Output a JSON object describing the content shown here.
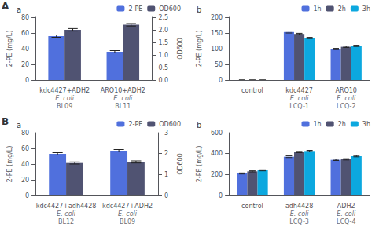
{
  "chart_data": [
    {
      "type": "bar",
      "title": "a",
      "annotations": [
        {
          "text": "A"
        }
      ],
      "categories": [
        "kdc4427+ADH2",
        "ARO10+ADH2"
      ],
      "strains": [
        "E. coli BL09",
        "E. coli BL11"
      ],
      "ylabel": "2-PE (mg/L)",
      "y2label": "OD600",
      "ylim": [
        0,
        80
      ],
      "yticks": [
        0,
        20,
        40,
        60,
        80
      ],
      "y2lim": [
        0,
        2.5
      ],
      "y2ticks": [
        {
          "value": 0,
          "label": "0.0"
        },
        0.5,
        {
          "value": 1.0,
          "label": "1.0"
        },
        1.5,
        {
          "value": 2.0,
          "label": "2.0"
        },
        2.5
      ],
      "series": [
        {
          "name": "2-PE",
          "values": [
            56,
            36
          ],
          "errors": [
            1.5,
            1.5
          ]
        },
        {
          "name": "OD600",
          "axis": "y2",
          "values": [
            2.0,
            2.2
          ],
          "errors": [
            0.05,
            0.05
          ]
        }
      ],
      "legend": "upper right",
      "grid": false
    },
    {
      "type": "bar",
      "title": "b",
      "categories": [
        "control",
        "kdc4427",
        "ARO10"
      ],
      "strains": [
        null,
        "E. coli LCQ-1",
        "E. coli LCQ-2"
      ],
      "ylabel": "2-PE (mg/L)",
      "ylim": [
        0,
        200
      ],
      "yticks": [
        0,
        50,
        100,
        150,
        200
      ],
      "series": [
        {
          "name": "1h",
          "values": [
            0,
            153,
            99
          ],
          "errors": [
            0,
            3,
            2
          ]
        },
        {
          "name": "2h",
          "values": [
            0,
            147,
            106
          ],
          "errors": [
            0,
            2,
            2
          ]
        },
        {
          "name": "3h",
          "values": [
            0,
            134,
            109
          ],
          "errors": [
            0,
            2,
            2
          ]
        }
      ],
      "legend": "upper right",
      "grid": false
    },
    {
      "type": "bar",
      "title": "a",
      "annotations": [
        {
          "text": "B"
        }
      ],
      "categories": [
        "kdc4427+adh4428",
        "kdc4427+ADH2"
      ],
      "strains": [
        "E. coli BL12",
        "E. coli BL09"
      ],
      "ylabel": "2-PE (mg/L)",
      "y2label": "OD600",
      "ylim": [
        0,
        80
      ],
      "yticks": [
        0,
        20,
        40,
        60,
        80
      ],
      "y2lim": [
        0,
        3
      ],
      "y2ticks": [
        0,
        1,
        2,
        3
      ],
      "series": [
        {
          "name": "2-PE",
          "values": [
            53,
            57
          ],
          "errors": [
            1.5,
            1.5
          ]
        },
        {
          "name": "OD600",
          "axis": "y2",
          "values": [
            1.55,
            1.6
          ],
          "errors": [
            0.05,
            0.05
          ]
        }
      ],
      "legend": "upper right",
      "grid": false
    },
    {
      "type": "bar",
      "title": "b",
      "categories": [
        "control",
        "adh4428",
        "ADH2"
      ],
      "strains": [
        null,
        "E. coli LCQ-3",
        "E. coli LCQ-4"
      ],
      "ylabel": "2-PE (mg/L)",
      "ylim": [
        0,
        600
      ],
      "yticks": [
        0,
        200,
        400,
        600
      ],
      "series": [
        {
          "name": "1h",
          "values": [
            210,
            370,
            340
          ],
          "errors": [
            5,
            8,
            6
          ]
        },
        {
          "name": "2h",
          "values": [
            230,
            415,
            345
          ],
          "errors": [
            5,
            6,
            6
          ]
        },
        {
          "name": "3h",
          "values": [
            240,
            425,
            375
          ],
          "errors": [
            5,
            6,
            6
          ]
        }
      ],
      "legend": "upper right",
      "grid": false
    }
  ]
}
